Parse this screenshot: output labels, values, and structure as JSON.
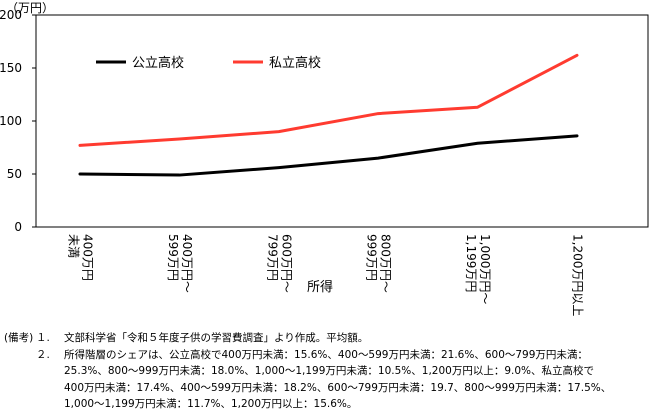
{
  "chart_data": {
    "type": "line",
    "unit_label": "（万円）",
    "categories": [
      [
        "400万円",
        "未満"
      ],
      [
        "400万円～",
        "599万円"
      ],
      [
        "600万円～",
        "799万円"
      ],
      [
        "800万円～",
        "999万円"
      ],
      [
        "1,000万円～",
        "1,199万円"
      ],
      [
        "1,200万円以上"
      ]
    ],
    "xlabel": "所得",
    "ylabel": "",
    "ylim": [
      0,
      200
    ],
    "yticks": [
      0,
      50,
      100,
      150,
      200
    ],
    "series": [
      {
        "name": "公立高校",
        "color": "#000000",
        "values": [
          50,
          49,
          56,
          65,
          79,
          86
        ]
      },
      {
        "name": "私立高校",
        "color": "#ff3b30",
        "values": [
          77,
          83,
          90,
          107,
          113,
          162
        ]
      }
    ]
  },
  "notes": {
    "prefix": "(備考)",
    "items": [
      {
        "num": "１.",
        "lines": [
          "文部科学省「令和５年度子供の学習費調査」より作成。平均額。"
        ]
      },
      {
        "num": "２.",
        "lines": [
          "所得階層のシェアは、公立高校で400万円未満：15.6%、400～599万円未満：21.6%、600～799万円未満：",
          "25.3%、800～999万円未満：18.0%、1,000～1,199万円未満：10.5%、1,200万円以上：9.0%、私立高校で",
          "400万円未満：17.4%、400～599万円未満：18.2%、600～799万円未満：19.7、800～999万円未満：17.5%、",
          "1,000～1,199万円未満：11.7%、1,200万円以上：15.6%。"
        ]
      }
    ]
  }
}
